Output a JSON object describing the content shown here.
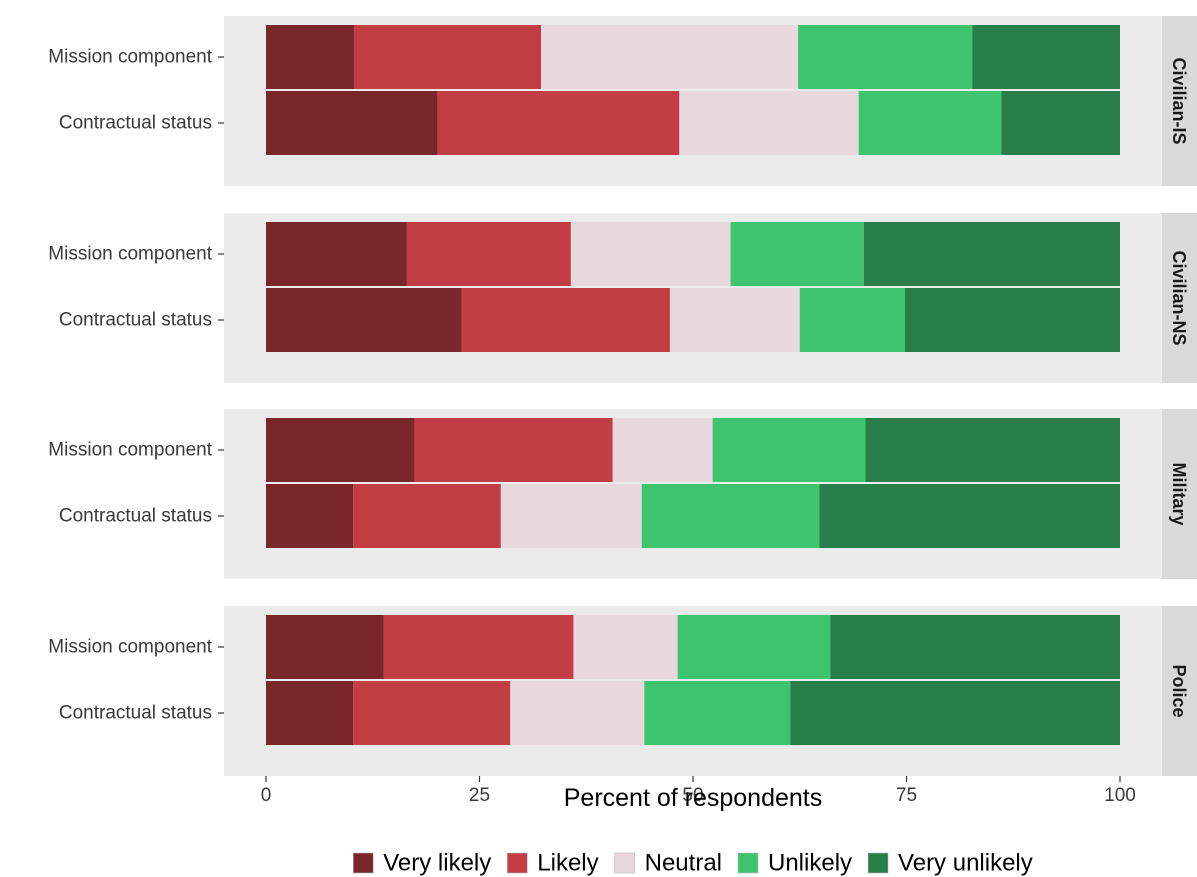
{
  "chart_data": {
    "type": "bar",
    "orientation": "horizontal",
    "stacked": true,
    "xlabel": "Percent of respondents",
    "xlim": [
      0,
      100
    ],
    "xticks": [
      0,
      25,
      50,
      75,
      100
    ],
    "categories": [
      "Mission component",
      "Contractual status"
    ],
    "legend_position": "bottom",
    "legend": [
      {
        "name": "Very likely",
        "color": "#79272b"
      },
      {
        "name": "Likely",
        "color": "#c23e44"
      },
      {
        "name": "Neutral",
        "color": "#e8d7dd"
      },
      {
        "name": "Unlikely",
        "color": "#3ec46e"
      },
      {
        "name": "Very unlikely",
        "color": "#287e49"
      }
    ],
    "panels": [
      {
        "label": "Civilian-IS",
        "rows": [
          {
            "category": "Mission component",
            "values": [
              10.3,
              21.9,
              30.1,
              20.4,
              17.3
            ]
          },
          {
            "category": "Contractual status",
            "values": [
              20.1,
              28.3,
              21.0,
              16.7,
              13.9
            ]
          }
        ]
      },
      {
        "label": "Civilian-NS",
        "rows": [
          {
            "category": "Mission component",
            "values": [
              16.5,
              19.2,
              18.7,
              15.6,
              30.0
            ]
          },
          {
            "category": "Contractual status",
            "values": [
              22.9,
              24.4,
              15.2,
              12.3,
              25.2
            ]
          }
        ]
      },
      {
        "label": "Military",
        "rows": [
          {
            "category": "Mission component",
            "values": [
              17.4,
              23.2,
              11.7,
              17.9,
              29.8
            ]
          },
          {
            "category": "Contractual status",
            "values": [
              10.2,
              17.3,
              16.5,
              20.8,
              35.2
            ]
          }
        ]
      },
      {
        "label": "Police",
        "rows": [
          {
            "category": "Mission component",
            "values": [
              13.8,
              22.2,
              12.2,
              17.9,
              33.9
            ]
          },
          {
            "category": "Contractual status",
            "values": [
              10.2,
              18.4,
              15.7,
              17.1,
              38.6
            ]
          }
        ]
      }
    ]
  }
}
